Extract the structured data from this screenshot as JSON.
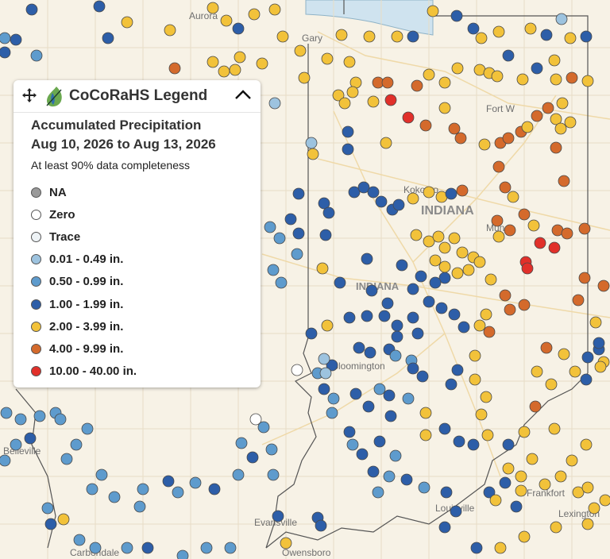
{
  "legend": {
    "title": "CoCoRaHS Legend",
    "heading_line1": "Accumulated Precipitation",
    "heading_line2": "Aug 10, 2026 to Aug 13, 2026",
    "subtitle": "At least 90% data completeness",
    "items": [
      {
        "label": "NA",
        "color": "#9a9a9a"
      },
      {
        "label": "Zero",
        "color": "#ffffff"
      },
      {
        "label": "Trace",
        "color": "#eef3f6"
      },
      {
        "label": "0.01 - 0.49 in.",
        "color": "#9dc3df"
      },
      {
        "label": "0.50 - 0.99 in.",
        "color": "#5e9bcd"
      },
      {
        "label": "1.00 - 1.99 in.",
        "color": "#2d5ea8"
      },
      {
        "label": "2.00 - 3.99 in.",
        "color": "#f2c23a"
      },
      {
        "label": "4.00 - 9.99 in.",
        "color": "#d46a2c"
      },
      {
        "label": "10.00 - 40.00 in.",
        "color": "#e1302a"
      }
    ]
  },
  "map_labels": {
    "gary": "Gary",
    "aurora": "Aurora",
    "fort_wayne": "Fort W",
    "kokomo": "Kokomo",
    "indiana": "INDIANA",
    "muncie": "Munc",
    "indianapolis": "INDIANA",
    "bloomington": "Bloomington",
    "belleville": "Belleville",
    "evansville": "Evansville",
    "louisville": "Louisville",
    "frankfort": "Frankfort",
    "lexington": "Lexington",
    "carbondale": "Carbondale",
    "owensboro": "Owensboro"
  }
}
